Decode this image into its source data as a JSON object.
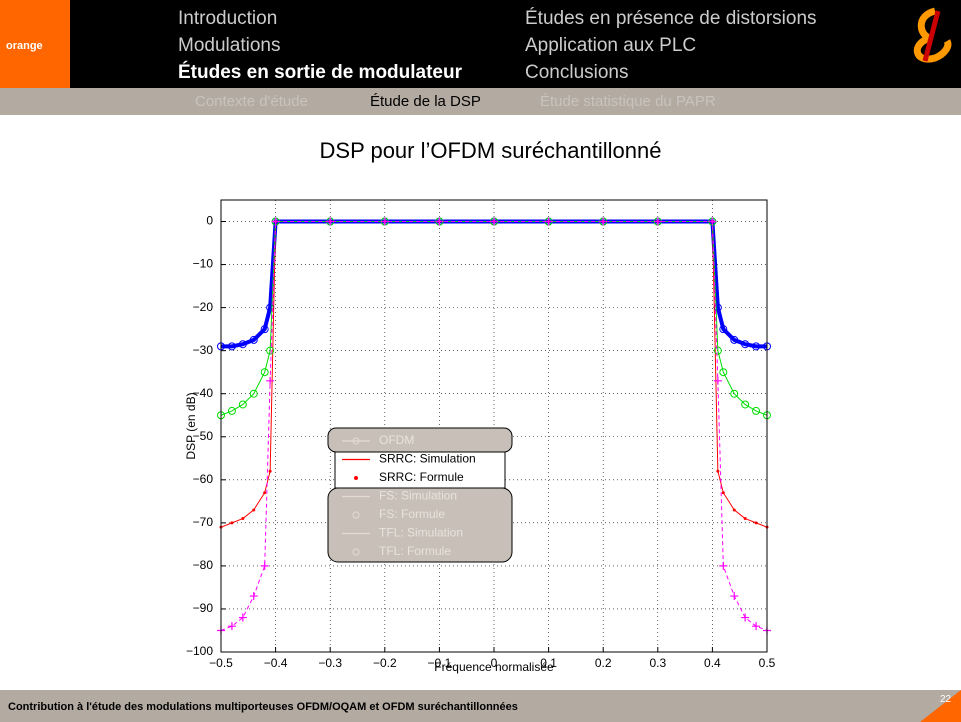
{
  "header": {
    "logo": "orange",
    "sections_left": [
      "Introduction",
      "Modulations",
      "Études en sortie de modulateur"
    ],
    "sections_right": [
      "Études en présence de distorsions",
      "Application aux PLC",
      "Conclusions"
    ],
    "subsections": [
      "Contexte d'étude",
      "Étude de la DSP",
      "Étude statistique du PAPR"
    ]
  },
  "slide_title": "DSP pour l’OFDM suréchantillonné",
  "chart_data": {
    "type": "line",
    "xlabel": "Fréquence normalisée",
    "ylabel": "DSP (en dB)",
    "x": [
      -0.5,
      -0.48,
      -0.46,
      -0.44,
      -0.42,
      -0.41,
      -0.4,
      -0.3,
      -0.2,
      -0.1,
      0,
      0.1,
      0.2,
      0.3,
      0.4,
      0.41,
      0.42,
      0.44,
      0.46,
      0.48,
      0.5
    ],
    "series": [
      {
        "name": "OFDM",
        "color": "#0000ff",
        "line": "solid",
        "marker": "o",
        "values": [
          -29,
          -29,
          -28.5,
          -27.5,
          -25,
          -20,
          0,
          0,
          0,
          0,
          0,
          0,
          0,
          0,
          0,
          -20,
          -25,
          -27.5,
          -28.5,
          -29,
          -29
        ]
      },
      {
        "name": "SRRC: Simulation",
        "color": "#ff0000",
        "line": "solid",
        "marker": null,
        "values": [
          -71,
          -70,
          -69,
          -67,
          -63,
          -58,
          0,
          0,
          0,
          0,
          0,
          0,
          0,
          0,
          0,
          -58,
          -63,
          -67,
          -69,
          -70,
          -71
        ]
      },
      {
        "name": "SRRC: Formule",
        "color": "#ff0000",
        "line": null,
        "marker": ".",
        "values": [
          -71,
          -70,
          -69,
          -67,
          -63,
          -58,
          0,
          0,
          0,
          0,
          0,
          0,
          0,
          0,
          0,
          -58,
          -63,
          -67,
          -69,
          -70,
          -71
        ]
      },
      {
        "name": "FS: Simulation",
        "color": "#00dd00",
        "line": "solid",
        "marker": null,
        "values": [
          -45,
          -44,
          -42.5,
          -40,
          -35,
          -30,
          0,
          0,
          0,
          0,
          0,
          0,
          0,
          0,
          0,
          -30,
          -35,
          -40,
          -42.5,
          -44,
          -45
        ]
      },
      {
        "name": "FS: Formule",
        "color": "#00dd00",
        "line": null,
        "marker": "o",
        "values": [
          -45,
          -44,
          -42.5,
          -40,
          -35,
          -30,
          0,
          0,
          0,
          0,
          0,
          0,
          0,
          0,
          0,
          -30,
          -35,
          -40,
          -42.5,
          -44,
          -45
        ]
      },
      {
        "name": "TFL: Simulation",
        "color": "#ff00ff",
        "line": "dashed",
        "marker": null,
        "values": [
          -95,
          -94,
          -92,
          -87,
          -80,
          -37,
          0,
          0,
          0,
          0,
          0,
          0,
          0,
          0,
          0,
          -37,
          -80,
          -87,
          -92,
          -94,
          -95
        ]
      },
      {
        "name": "TFL: Formule",
        "color": "#ff00ff",
        "line": null,
        "marker": "+",
        "values": [
          -95,
          -94,
          -92,
          -87,
          -80,
          -37,
          0,
          0,
          0,
          0,
          0,
          0,
          0,
          0,
          0,
          -37,
          -80,
          -87,
          -92,
          -94,
          -95
        ]
      }
    ],
    "xlim": [
      -0.5,
      0.5
    ],
    "xticks": [
      {
        "value": -0.5,
        "label": "−0.5"
      },
      {
        "value": -0.4,
        "label": "−0.4"
      },
      {
        "value": -0.3,
        "label": "−0.3"
      },
      {
        "value": -0.2,
        "label": "−0.2"
      },
      {
        "value": -0.1,
        "label": "−0.1"
      },
      0,
      0.1,
      0.2,
      0.3,
      0.4,
      0.5
    ],
    "ylim": [
      -100,
      5
    ],
    "yticks": [
      {
        "value": -100,
        "label": "−100"
      },
      {
        "value": -90,
        "label": "−90"
      },
      {
        "value": -80,
        "label": "−80"
      },
      {
        "value": -70,
        "label": "−70"
      },
      {
        "value": -60,
        "label": "−60"
      },
      {
        "value": -50,
        "label": "−50"
      },
      {
        "value": -40,
        "label": "−40"
      },
      {
        "value": -30,
        "label": "−30"
      },
      {
        "value": -20,
        "label": "−20"
      },
      {
        "value": -10,
        "label": "−10"
      },
      0
    ],
    "grid": true
  },
  "footer": {
    "text": "Contribution à l'étude des modulations multiporteuses OFDM/OQAM et OFDM suréchantillonnées",
    "page": "22"
  }
}
